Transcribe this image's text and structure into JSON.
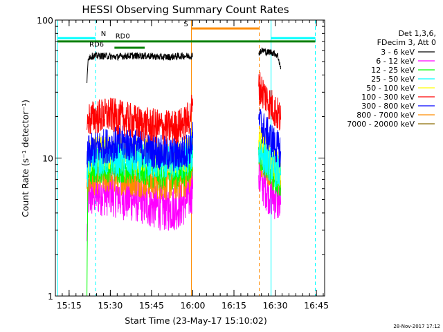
{
  "chart_data": {
    "type": "line",
    "title": "HESSI Observing Summary Count Rates",
    "xlabel": "Start Time (23-May-17 15:10:02)",
    "ylabel": "Count Rate (s⁻¹ detector⁻¹)",
    "y_scale": "log",
    "ylim": [
      1,
      100
    ],
    "x_unit": "minutes since 15:10:02",
    "xlim": [
      0,
      98
    ],
    "x_ticks": [
      {
        "t": 5,
        "label": "15:15"
      },
      {
        "t": 20,
        "label": "15:30"
      },
      {
        "t": 35,
        "label": "15:45"
      },
      {
        "t": 50,
        "label": "16:00"
      },
      {
        "t": 65,
        "label": "16:15"
      },
      {
        "t": 80,
        "label": "16:30"
      },
      {
        "t": 95,
        "label": "16:45"
      }
    ],
    "y_ticks": [
      {
        "v": 1,
        "label": "1"
      },
      {
        "v": 10,
        "label": "10"
      },
      {
        "v": 100,
        "label": "100"
      }
    ],
    "legend_header": [
      "Det 1,3,6,",
      "FDecim 3, Att 0"
    ],
    "series": [
      {
        "name": "3 - 6 keV",
        "color": "#000000",
        "segments": [
          [
            [
              11.5,
              35
            ],
            [
              12,
              54
            ],
            [
              14,
              55
            ],
            [
              18,
              55
            ],
            [
              22,
              54
            ],
            [
              26,
              55
            ],
            [
              30,
              55
            ],
            [
              34,
              55
            ],
            [
              38,
              54
            ],
            [
              42,
              54
            ],
            [
              46,
              55
            ],
            [
              49,
              55
            ],
            [
              50,
              55
            ]
          ],
          [
            [
              74,
              58
            ],
            [
              75,
              60
            ],
            [
              76,
              60
            ],
            [
              77,
              58
            ],
            [
              78,
              59
            ],
            [
              79,
              58
            ],
            [
              80,
              57
            ],
            [
              81,
              55
            ],
            [
              82,
              44
            ]
          ]
        ]
      },
      {
        "name": "6 - 12 keV",
        "color": "#ff00ff",
        "segments": [
          [
            [
              11.5,
              2.5
            ],
            [
              12,
              5.2
            ],
            [
              15,
              5.6
            ],
            [
              20,
              5.6
            ],
            [
              25,
              5.2
            ],
            [
              30,
              5.0
            ],
            [
              34,
              4.6
            ],
            [
              38,
              4.4
            ],
            [
              42,
              4.3
            ],
            [
              45,
              4.5
            ],
            [
              47,
              4.8
            ],
            [
              49,
              5.4
            ],
            [
              50,
              6.0
            ]
          ],
          [
            [
              74,
              7.5
            ],
            [
              75,
              6.8
            ],
            [
              76,
              6.4
            ],
            [
              77,
              6.0
            ],
            [
              78,
              5.6
            ],
            [
              79,
              5.4
            ],
            [
              80,
              5.2
            ],
            [
              81,
              5.0
            ],
            [
              82,
              4.6
            ]
          ]
        ]
      },
      {
        "name": "12 - 25 keV",
        "color": "#00ff00",
        "segments": [
          [
            [
              11.5,
              1.0
            ],
            [
              12,
              8.0
            ],
            [
              15,
              8.8
            ],
            [
              20,
              9.0
            ],
            [
              25,
              8.8
            ],
            [
              30,
              8.5
            ],
            [
              34,
              8.2
            ],
            [
              38,
              8.0
            ],
            [
              42,
              7.9
            ],
            [
              45,
              8.1
            ],
            [
              47,
              8.4
            ],
            [
              49,
              8.8
            ],
            [
              50,
              10.0
            ]
          ],
          [
            [
              74,
              12.0
            ],
            [
              75,
              10.5
            ],
            [
              76,
              9.8
            ],
            [
              77,
              9.0
            ],
            [
              78,
              8.4
            ],
            [
              79,
              7.8
            ],
            [
              80,
              7.3
            ],
            [
              81,
              6.9
            ],
            [
              82,
              6.4
            ]
          ]
        ]
      },
      {
        "name": "25 - 50 keV",
        "color": "#00ffff",
        "segments": [
          [
            [
              11.5,
              7.0
            ],
            [
              12,
              9.5
            ],
            [
              15,
              9.8
            ],
            [
              20,
              9.9
            ],
            [
              25,
              9.7
            ],
            [
              30,
              9.5
            ],
            [
              34,
              9.4
            ],
            [
              38,
              9.3
            ],
            [
              42,
              9.2
            ],
            [
              45,
              9.4
            ],
            [
              47,
              9.7
            ],
            [
              49,
              10.2
            ],
            [
              50,
              11.5
            ]
          ],
          [
            [
              74,
              11.5
            ],
            [
              75,
              10.8
            ],
            [
              76,
              10.2
            ],
            [
              77,
              9.6
            ],
            [
              78,
              9.1
            ],
            [
              79,
              8.7
            ],
            [
              80,
              8.3
            ],
            [
              81,
              7.9
            ],
            [
              82,
              7.5
            ]
          ]
        ]
      },
      {
        "name": "50 - 100 keV",
        "color": "#ffff00",
        "segments": [
          [
            [
              11.5,
              8.0
            ],
            [
              12,
              10.5
            ],
            [
              15,
              10.8
            ],
            [
              20,
              11.0
            ],
            [
              25,
              10.8
            ],
            [
              30,
              10.4
            ],
            [
              34,
              10.2
            ],
            [
              38,
              10.0
            ],
            [
              42,
              9.9
            ],
            [
              45,
              10.1
            ],
            [
              47,
              10.4
            ],
            [
              49,
              11.0
            ],
            [
              50,
              12.5
            ]
          ],
          [
            [
              74,
              13.5
            ],
            [
              75,
              12.5
            ],
            [
              76,
              11.6
            ],
            [
              77,
              10.8
            ],
            [
              78,
              10.0
            ],
            [
              79,
              9.4
            ],
            [
              80,
              8.9
            ],
            [
              81,
              8.4
            ],
            [
              82,
              8.0
            ]
          ]
        ]
      },
      {
        "name": "100 - 300 keV",
        "color": "#ff0000",
        "segments": [
          [
            [
              11.5,
              16.0
            ],
            [
              12,
              19.0
            ],
            [
              15,
              20.0
            ],
            [
              20,
              20.5
            ],
            [
              24,
              19.5
            ],
            [
              28,
              18.5
            ],
            [
              32,
              17.5
            ],
            [
              36,
              17.0
            ],
            [
              40,
              16.6
            ],
            [
              44,
              16.8
            ],
            [
              47,
              17.8
            ],
            [
              49,
              20.0
            ],
            [
              50,
              24.0
            ]
          ],
          [
            [
              74,
              33.0
            ],
            [
              75,
              31.0
            ],
            [
              76,
              29.0
            ],
            [
              77,
              27.0
            ],
            [
              78,
              25.0
            ],
            [
              79,
              23.5
            ],
            [
              80,
              22.0
            ],
            [
              81,
              20.5
            ],
            [
              82,
              19.0
            ]
          ]
        ]
      },
      {
        "name": "300 - 800 keV",
        "color": "#0000ff",
        "segments": [
          [
            [
              11.5,
              9.0
            ],
            [
              12,
              11.0
            ],
            [
              15,
              11.8
            ],
            [
              20,
              12.5
            ],
            [
              25,
              12.8
            ],
            [
              30,
              12.2
            ],
            [
              34,
              11.5
            ],
            [
              38,
              11.0
            ],
            [
              42,
              10.6
            ],
            [
              45,
              10.6
            ],
            [
              47,
              11.0
            ],
            [
              49,
              12.0
            ],
            [
              50,
              14.0
            ]
          ],
          [
            [
              74,
              19.0
            ],
            [
              75,
              17.5
            ],
            [
              76,
              16.0
            ],
            [
              77,
              15.0
            ],
            [
              78,
              14.0
            ],
            [
              79,
              13.2
            ],
            [
              80,
              12.4
            ],
            [
              81,
              11.8
            ],
            [
              82,
              11.2
            ]
          ]
        ]
      },
      {
        "name": "800 - 7000 keV",
        "color": "#ff8c00",
        "segments": [
          [
            [
              11.5,
              6.0
            ],
            [
              12,
              7.0
            ],
            [
              15,
              7.3
            ],
            [
              20,
              7.5
            ],
            [
              25,
              7.2
            ],
            [
              30,
              7.0
            ],
            [
              34,
              6.8
            ],
            [
              38,
              6.7
            ],
            [
              42,
              6.6
            ],
            [
              45,
              6.7
            ],
            [
              47,
              6.9
            ],
            [
              49,
              7.3
            ],
            [
              50,
              8.0
            ]
          ],
          [
            [
              74,
              10.5
            ],
            [
              75,
              9.8
            ],
            [
              76,
              9.2
            ],
            [
              77,
              8.7
            ],
            [
              78,
              8.2
            ],
            [
              79,
              7.8
            ],
            [
              80,
              7.5
            ],
            [
              81,
              7.2
            ],
            [
              82,
              6.9
            ]
          ]
        ]
      },
      {
        "name": "7000 - 20000 keV",
        "color": "#8b6b00",
        "segments": []
      }
    ],
    "vertical_lines": [
      {
        "t": 0.8,
        "color": "#00ffff",
        "style": "solid"
      },
      {
        "t": 14.6,
        "color": "#00ffff",
        "style": "dashed"
      },
      {
        "t": 49.5,
        "color": "#ff8c00",
        "style": "solid"
      },
      {
        "t": 78.5,
        "color": "#00ffff",
        "style": "solid"
      },
      {
        "t": 74.2,
        "color": "#ff8c00",
        "style": "dashed"
      },
      {
        "t": 94.6,
        "color": "#00ffff",
        "style": "dashed"
      }
    ],
    "state_bars": [
      {
        "label": "N",
        "color": "#00ffff",
        "y": 74,
        "ranges": [
          [
            0.8,
            14.6
          ],
          [
            78.5,
            94.6
          ]
        ],
        "label_t": 17.5
      },
      {
        "label": "S",
        "color": "#ff8c00",
        "y": 87,
        "ranges": [
          [
            49.5,
            74.2
          ]
        ],
        "label_t": 47.5
      },
      {
        "label": "RD0",
        "color": "#008000",
        "y": 70,
        "ranges": [
          [
            0.8,
            94.6
          ]
        ],
        "label_t": 24.5,
        "label_y": 71
      },
      {
        "label": "RD6",
        "color": "#008000",
        "y": 63,
        "ranges": [
          [
            21.5,
            32.5
          ]
        ],
        "label_t": 15.0,
        "label_y": 62
      }
    ]
  },
  "timestamp": "28-Nov-2017 17:12"
}
